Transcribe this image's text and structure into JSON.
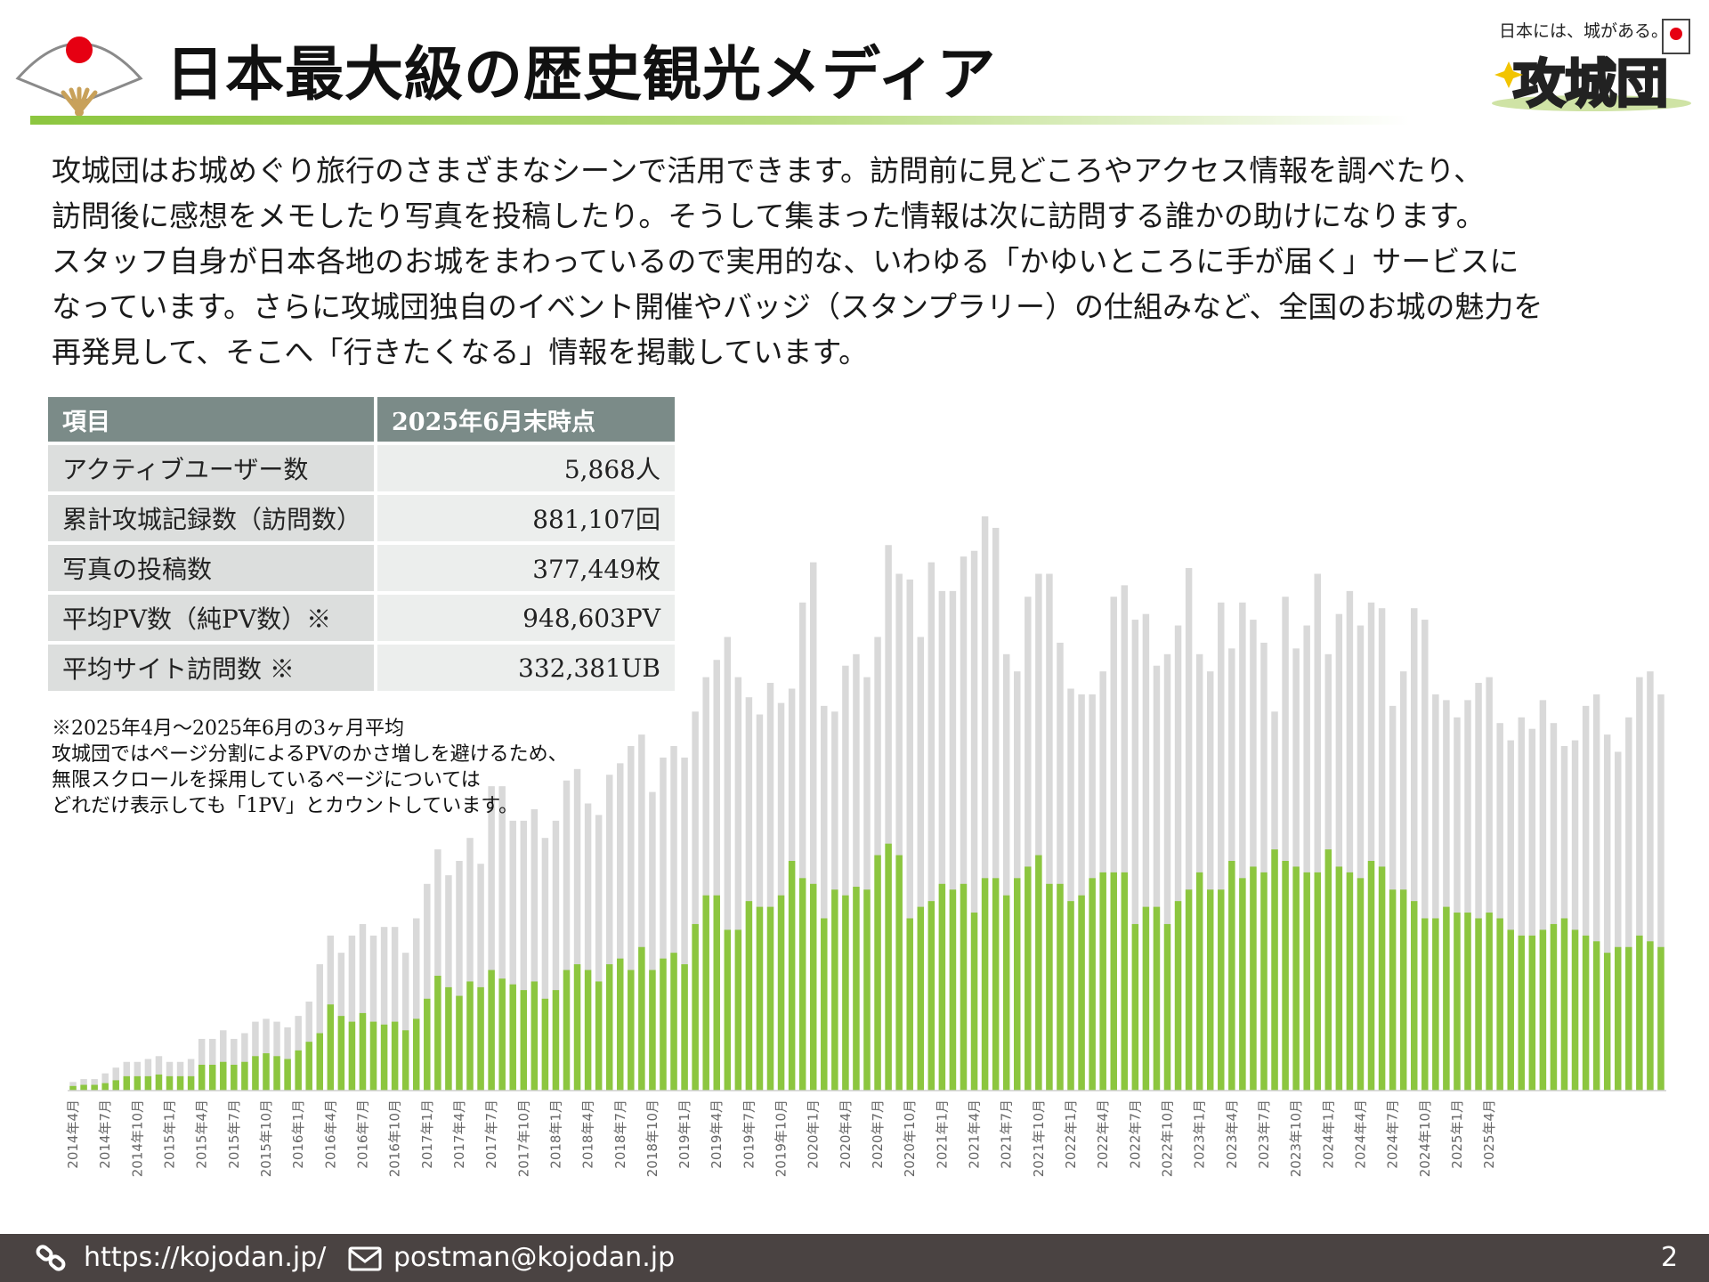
{
  "header": {
    "title": "日本最大級の歴史観光メディア",
    "logo_tagline": "日本には、城がある。",
    "logo_text": "攻城団"
  },
  "intro": [
    "攻城団はお城めぐり旅行のさまざまなシーンで活用できます。訪問前に見どころやアクセス情報を調べたり、",
    "訪問後に感想をメモしたり写真を投稿したり。そうして集まった情報は次に訪問する誰かの助けになります。",
    "スタッフ自身が日本各地のお城をまわっているので実用的な、いわゆる「かゆいところに手が届く」サービスに",
    "なっています。さらに攻城団独自のイベント開催やバッジ（スタンプラリー）の仕組みなど、全国のお城の魅力を",
    "再発見して、そこへ「行きたくなる」情報を掲載しています。"
  ],
  "stats_table": {
    "headers": [
      "項目",
      "2025年6月末時点"
    ],
    "rows": [
      {
        "label": "アクティブユーザー数",
        "value": "5,868人"
      },
      {
        "label": "累計攻城記録数（訪問数）",
        "value": "881,107回"
      },
      {
        "label": "写真の投稿数",
        "value": "377,449枚"
      },
      {
        "label": "平均PV数（純PV数）※",
        "value": "948,603PV"
      },
      {
        "label": "平均サイト訪問数 ※",
        "value": "332,381UB"
      }
    ]
  },
  "notes": [
    "※2025年4月～2025年6月の3ヶ月平均",
    "攻城団ではページ分割によるPVのかさ増しを避けるため、",
    "無限スクロールを採用しているページについては",
    "どれだけ表示しても「1PV」とカウントしています。"
  ],
  "chart_data": {
    "type": "bar",
    "title": "",
    "xlabel": "",
    "ylabel": "",
    "grid": false,
    "legend": "none",
    "x_tick_labels": [
      "2014年4月",
      "2014年7月",
      "2014年10月",
      "2015年1月",
      "2015年4月",
      "2015年7月",
      "2015年10月",
      "2016年1月",
      "2016年4月",
      "2016年7月",
      "2016年10月",
      "2017年1月",
      "2017年4月",
      "2017年7月",
      "2017年10月",
      "2018年1月",
      "2018年4月",
      "2018年7月",
      "2018年10月",
      "2019年1月",
      "2019年4月",
      "2019年7月",
      "2019年10月",
      "2020年1月",
      "2020年4月",
      "2020年7月",
      "2020年10月",
      "2021年1月",
      "2021年4月",
      "2021年7月",
      "2021年10月",
      "2022年1月",
      "2022年4月",
      "2022年7月",
      "2022年10月",
      "2023年1月",
      "2023年4月",
      "2023年7月",
      "2023年10月",
      "2024年1月",
      "2024年4月",
      "2024年7月",
      "2024年10月",
      "2025年1月",
      "2025年4月"
    ],
    "ylim": [
      0,
      100
    ],
    "series": [
      {
        "color": "#d9d9d9",
        "values": [
          1.5,
          2,
          2,
          3,
          4,
          5,
          5,
          5.5,
          6,
          5,
          5,
          5.5,
          9,
          9,
          10.5,
          9,
          10,
          12,
          12.5,
          12,
          11,
          13,
          15.5,
          22,
          27,
          24,
          27,
          29,
          27,
          28.5,
          28.5,
          24,
          30,
          36,
          42,
          37.5,
          40,
          44,
          39.5,
          53,
          53,
          47,
          47,
          49,
          44,
          47,
          54,
          56,
          50,
          48,
          55,
          57,
          60,
          62,
          52,
          58,
          60,
          58,
          66,
          72,
          75,
          79,
          72,
          68.5,
          65.5,
          71,
          67.5,
          70,
          85,
          92,
          67,
          66,
          74,
          76,
          72,
          79,
          95,
          90,
          89,
          79,
          92,
          87,
          87,
          93,
          94,
          100,
          98,
          76,
          73,
          86,
          90,
          90,
          78,
          70,
          69,
          69,
          73,
          86,
          88,
          82,
          83,
          74,
          76,
          81,
          91,
          76,
          73,
          85,
          77,
          85,
          82,
          78,
          66,
          86,
          77,
          81,
          90,
          76,
          83,
          87,
          81,
          85,
          84,
          67,
          73,
          84,
          82,
          69,
          68,
          65,
          68,
          71,
          72,
          64,
          61,
          65,
          63,
          68,
          64,
          60,
          61,
          67,
          69,
          62,
          59,
          65,
          72,
          73,
          69
        ]
      },
      {
        "color": "#8cc63f",
        "values": [
          0.8,
          1,
          1,
          1.3,
          1.8,
          2.5,
          2.5,
          2.5,
          2.8,
          2.5,
          2.5,
          2.5,
          4.5,
          4.5,
          5,
          4.5,
          5,
          6,
          6.5,
          6,
          5.5,
          7,
          8.5,
          10,
          15,
          13,
          12,
          13.5,
          12,
          11.5,
          12,
          10.5,
          12.5,
          16,
          20,
          18,
          16.5,
          19,
          18,
          21,
          19.5,
          18.5,
          17.5,
          19,
          16,
          17.5,
          21,
          22,
          21,
          19,
          22,
          23,
          21,
          25,
          21,
          23,
          24,
          22,
          29,
          34,
          34,
          28,
          28,
          33,
          32,
          32,
          34,
          40,
          37,
          36,
          30,
          35,
          34,
          35.5,
          35,
          41,
          43,
          41,
          30,
          32,
          33,
          36,
          35,
          36,
          31,
          37,
          37,
          34,
          37,
          39,
          41,
          36,
          36,
          33,
          34,
          37,
          38,
          38,
          38,
          29,
          32,
          32,
          29,
          33,
          35,
          38,
          35,
          35,
          40,
          37,
          39,
          38,
          42,
          40,
          39,
          38,
          38,
          42,
          39,
          38,
          37,
          40,
          39,
          35,
          35,
          33,
          30,
          30,
          32,
          31,
          31,
          30,
          31,
          30,
          28,
          27,
          27,
          28,
          29,
          30,
          28,
          27,
          26,
          24,
          25,
          25,
          27,
          26,
          25
        ]
      }
    ]
  },
  "footer": {
    "url": "https://kojodan.jp/",
    "email": "postman@kojodan.jp",
    "page_number": "2"
  }
}
